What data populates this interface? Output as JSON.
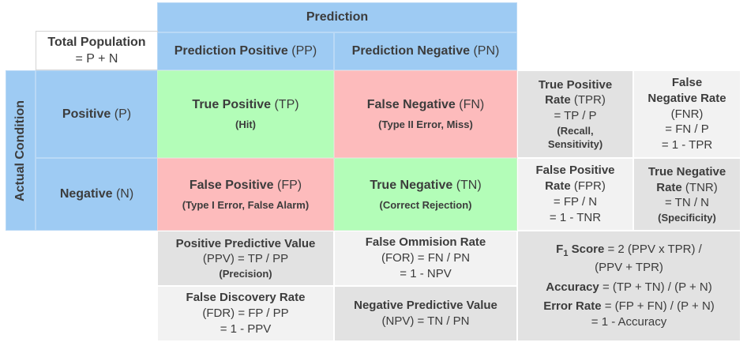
{
  "header": {
    "prediction": "Prediction",
    "actual_condition": "Actual Condition",
    "total_population_title": "Total Population",
    "total_population_formula": "= P + N",
    "pred_positive_name": "Prediction Positive",
    "pred_positive_abbr": "(PP)",
    "pred_negative_name": "Prediction Negative",
    "pred_negative_abbr": "(PN)",
    "positive_name": "Positive",
    "positive_abbr": "(P)",
    "negative_name": "Negative",
    "negative_abbr": "(N)"
  },
  "matrix": {
    "tp_name": "True Positive",
    "tp_abbr": "(TP)",
    "tp_note": "(Hit)",
    "fn_name": "False Negative",
    "fn_abbr": "(FN)",
    "fn_note": "(Type II Error, Miss)",
    "fp_name": "False Positive",
    "fp_abbr": "(FP)",
    "fp_note": "(Type I Error, False Alarm)",
    "tn_name": "True Negative",
    "tn_abbr": "(TN)",
    "tn_note": "(Correct Rejection)"
  },
  "rates": {
    "tpr_l1": "True Positive",
    "tpr_l2a": "Rate",
    "tpr_l2b": "(TPR)",
    "tpr_formula": "= TP / P",
    "tpr_note1": "(Recall,",
    "tpr_note2": "Sensitivity)",
    "fnr_l1": "False",
    "fnr_l2": "Negative Rate",
    "fnr_abbr": "(FNR)",
    "fnr_f1": "= FN / P",
    "fnr_f2": "= 1 - TPR",
    "fpr_l1": "False Positive",
    "fpr_l2a": "Rate",
    "fpr_l2b": "(FPR)",
    "fpr_f1": "= FP / N",
    "fpr_f2": "= 1 - TNR",
    "tnr_l1": "True Negative",
    "tnr_l2a": "Rate",
    "tnr_l2b": "(TNR)",
    "tnr_f1": "= TN / N",
    "tnr_note": "(Specificity)"
  },
  "predictive": {
    "ppv_name": "Positive Predictive Value",
    "ppv_formula": "(PPV) = TP / PP",
    "ppv_note": "(Precision)",
    "for_name": "False Ommision Rate",
    "for_f1": "(FOR) = FN / PN",
    "for_f2": "= 1 - NPV",
    "fdr_name": "False Discovery Rate",
    "fdr_f1": "(FDR) = FP / PP",
    "fdr_f2": "= 1 - PPV",
    "npv_name": "Negative Predictive Value",
    "npv_formula": "(NPV) = TN / PN"
  },
  "summary": {
    "f1_label": "F",
    "f1_sub": "1",
    "f1_label2": "Score",
    "f1_f1": "= 2 (PPV x TPR) /",
    "f1_f2": "(PPV + TPR)",
    "acc_label": "Accuracy",
    "acc_formula": "= (TP + TN) / (P + N)",
    "err_label": "Error Rate",
    "err_formula": "= (FP + FN) / (P + N)",
    "err_f2": "= 1 - Accuracy"
  },
  "colors": {
    "header_blue": "#9ecbf3",
    "correct_green": "#b3fdb8",
    "error_red": "#fdbbbc",
    "metric_gray": "#e2e2e2",
    "metric_light_gray": "#f2f2f2"
  }
}
